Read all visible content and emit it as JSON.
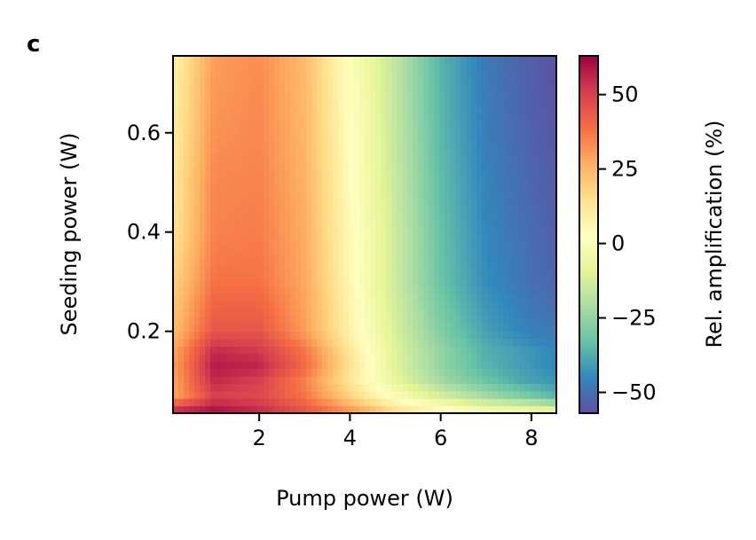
{
  "panel_label": "c",
  "chart_data": {
    "type": "heatmap",
    "xlabel": "Pump power (W)",
    "ylabel": "Seeding power (W)",
    "xlim": [
      0.1,
      8.55
    ],
    "ylim": [
      0.035,
      0.755
    ],
    "xticks": [
      2,
      4,
      6,
      8
    ],
    "xtick_labels": [
      "2",
      "4",
      "6",
      "8"
    ],
    "yticks": [
      0.2,
      0.4,
      0.6
    ],
    "ytick_labels": [
      "0.2",
      "0.4",
      "0.6"
    ],
    "colormap": "Spectral_r",
    "colorbar": {
      "label": "Rel. amplification (%)",
      "range": [
        -57,
        63
      ],
      "ticks": [
        50,
        25,
        0,
        -25,
        -50
      ],
      "tick_labels": [
        "50",
        "25",
        "0",
        "−25",
        "−50"
      ]
    },
    "x": [
      0.2,
      1.0,
      2.0,
      3.0,
      4.0,
      5.0,
      6.0,
      7.0,
      8.0,
      8.5
    ],
    "y": [
      0.04,
      0.07,
      0.1,
      0.13,
      0.16,
      0.2,
      0.3,
      0.4,
      0.5,
      0.6,
      0.75
    ],
    "z": [
      [
        55,
        60,
        55,
        45,
        32,
        15,
        5,
        -2,
        -5,
        -8
      ],
      [
        30,
        50,
        48,
        38,
        18,
        0,
        -12,
        -22,
        -30,
        -35
      ],
      [
        30,
        55,
        50,
        35,
        12,
        -8,
        -22,
        -32,
        -40,
        -42
      ],
      [
        32,
        58,
        56,
        40,
        14,
        -10,
        -25,
        -36,
        -42,
        -45
      ],
      [
        30,
        55,
        52,
        38,
        12,
        -10,
        -25,
        -37,
        -42,
        -45
      ],
      [
        25,
        45,
        45,
        30,
        8,
        -12,
        -28,
        -40,
        -47,
        -48
      ],
      [
        20,
        38,
        38,
        28,
        6,
        -14,
        -32,
        -44,
        -50,
        -52
      ],
      [
        15,
        35,
        36,
        27,
        5,
        -14,
        -33,
        -45,
        -51,
        -53
      ],
      [
        14,
        34,
        35,
        26,
        4,
        -15,
        -34,
        -46,
        -52,
        -54
      ],
      [
        12,
        32,
        34,
        25,
        3,
        -16,
        -35,
        -47,
        -53,
        -55
      ],
      [
        10,
        30,
        33,
        24,
        2,
        -17,
        -36,
        -48,
        -54,
        -56
      ]
    ]
  }
}
